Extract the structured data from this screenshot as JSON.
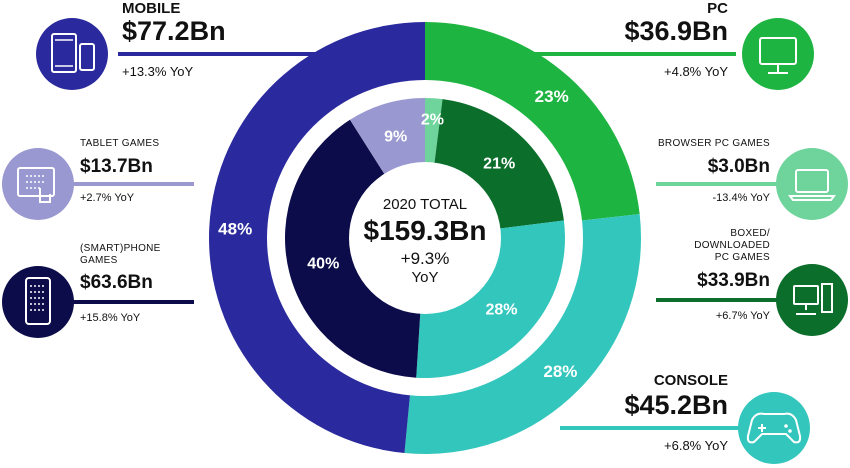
{
  "colors": {
    "mobile": "#2a2a9e",
    "phone": "#0c0c4a",
    "tablet": "#9a98d0",
    "pc": "#1eb441",
    "browser": "#6fd49b",
    "boxed": "#0b6e2b",
    "console": "#33c6bd"
  },
  "center": {
    "title": "2020 TOTAL",
    "value": "$159.3Bn",
    "yoy": "+9.3%",
    "yoy_unit": "YoY"
  },
  "segments": {
    "mobile": {
      "name": "MOBILE",
      "value": "$77.2Bn",
      "yoy": "+13.3% YoY",
      "icon": "mobile-devices-icon"
    },
    "tablet": {
      "name": "TABLET GAMES",
      "value": "$13.7Bn",
      "yoy": "+2.7% YoY",
      "icon": "tablet-touch-icon"
    },
    "phone": {
      "name_line1": "(SMART)PHONE",
      "name_line2": "GAMES",
      "value": "$63.6Bn",
      "yoy": "+15.8% YoY",
      "icon": "smartphone-icon"
    },
    "pc": {
      "name": "PC",
      "value": "$36.9Bn",
      "yoy": "+4.8% YoY",
      "icon": "monitor-icon"
    },
    "browser": {
      "name": "BROWSER PC GAMES",
      "value": "$3.0Bn",
      "yoy": "-13.4% YoY",
      "icon": "laptop-icon"
    },
    "boxed": {
      "name_line1": "BOXED/",
      "name_line2": "DOWNLOADED",
      "name_line3": "PC GAMES",
      "value": "$33.9Bn",
      "yoy": "+6.7% YoY",
      "icon": "desktop-tower-icon"
    },
    "console": {
      "name": "CONSOLE",
      "value": "$45.2Bn",
      "yoy": "+6.8% YoY",
      "icon": "gamepad-icon"
    }
  },
  "chart_data": {
    "type": "pie",
    "outer_ring": {
      "categories": [
        "PC",
        "Console",
        "Mobile"
      ],
      "values": [
        23,
        28,
        48
      ],
      "labels": [
        "23%",
        "28%",
        "48%"
      ]
    },
    "inner_ring": {
      "categories": [
        "Browser PC Games",
        "Boxed/Downloaded PC Games",
        "Console",
        "(Smart)phone Games",
        "Tablet Games"
      ],
      "values": [
        2,
        21,
        28,
        40,
        9
      ],
      "labels": [
        "2%",
        "21%",
        "28%",
        "40%",
        "9%"
      ]
    }
  }
}
